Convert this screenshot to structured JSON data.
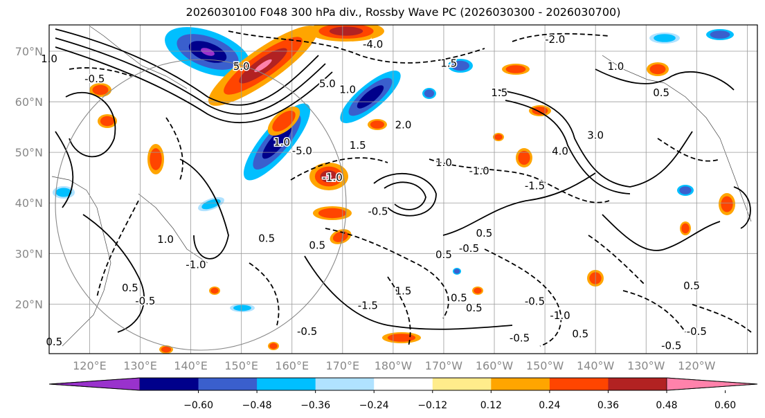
{
  "title": "2026030100 F048 300 hPa div., Rossby Wave PC (2026030300 - 2026030700)",
  "map": {
    "lat_labels": [
      "70°N",
      "60°N",
      "50°N",
      "40°N",
      "30°N",
      "20°N"
    ],
    "lon_labels": [
      "120°E",
      "130°E",
      "140°E",
      "150°E",
      "160°E",
      "170°E",
      "180°W",
      "170°W",
      "160°W",
      "150°W",
      "140°W",
      "130°W",
      "120°W"
    ],
    "contour_labels": [
      {
        "text": "-2.0",
        "lon": -148,
        "lat": 72.3
      },
      {
        "text": "-4.0",
        "lon": 176,
        "lat": 71.4
      },
      {
        "text": "1.0",
        "lon": 112,
        "lat": 68.5
      },
      {
        "text": "-0.5",
        "lon": 121,
        "lat": 64.5
      },
      {
        "text": "5.0",
        "lon": 150,
        "lat": 67
      },
      {
        "text": "5.0",
        "lon": 167,
        "lat": 63.6
      },
      {
        "text": "1.0",
        "lon": 171,
        "lat": 62.4
      },
      {
        "text": "1.5",
        "lon": -169,
        "lat": 67.6
      },
      {
        "text": "1.0",
        "lon": -136,
        "lat": 67
      },
      {
        "text": "1.5",
        "lon": -159,
        "lat": 61.8
      },
      {
        "text": "0.5",
        "lon": -127,
        "lat": 61.8
      },
      {
        "text": "3.0",
        "lon": -140,
        "lat": 53.4
      },
      {
        "text": "4.0",
        "lon": -147,
        "lat": 50.2
      },
      {
        "text": "-1.0",
        "lon": -163,
        "lat": 46.3
      },
      {
        "text": "-1.5",
        "lon": -152,
        "lat": 43.4
      },
      {
        "text": "-0.5",
        "lon": 177,
        "lat": 38.3
      },
      {
        "text": "0.5",
        "lon": 165,
        "lat": 31.6
      },
      {
        "text": "-1.0",
        "lon": 141,
        "lat": 27.8
      },
      {
        "text": "0.5",
        "lon": 155,
        "lat": 33
      },
      {
        "text": "-1.5",
        "lon": 175,
        "lat": 19.7
      },
      {
        "text": "1.5",
        "lon": -178,
        "lat": 22.6
      },
      {
        "text": "0.5",
        "lon": -167,
        "lat": 21.2
      },
      {
        "text": "-0.5",
        "lon": -165,
        "lat": 31
      },
      {
        "text": "0.5",
        "lon": -164,
        "lat": 19.2
      },
      {
        "text": "0.5",
        "lon": -162,
        "lat": 34
      },
      {
        "text": "-0.5",
        "lon": -152,
        "lat": 20.5
      },
      {
        "text": "-1.0",
        "lon": -147,
        "lat": 17.7
      },
      {
        "text": "-0.5",
        "lon": -155,
        "lat": 13.3
      },
      {
        "text": "0.5",
        "lon": -143,
        "lat": 14.1
      },
      {
        "text": "-0.5",
        "lon": -120,
        "lat": 14.6
      },
      {
        "text": "-0.5",
        "lon": -125,
        "lat": 11.8
      },
      {
        "text": "0.5",
        "lon": -121,
        "lat": 23.6
      },
      {
        "text": "-0.5",
        "lon": 131,
        "lat": 20.6
      },
      {
        "text": "-0.5",
        "lon": 163,
        "lat": 14.6
      },
      {
        "text": "0.5",
        "lon": 128,
        "lat": 23.2
      },
      {
        "text": "0.5",
        "lon": 113,
        "lat": 12.5
      },
      {
        "text": "-1.0",
        "lon": 168,
        "lat": 45
      },
      {
        "text": "1.0",
        "lon": 158,
        "lat": 52
      },
      {
        "text": "-5.0",
        "lon": 162,
        "lat": 50.3
      },
      {
        "text": "1.5",
        "lon": 173,
        "lat": 51.4
      },
      {
        "text": "2.0",
        "lon": -178,
        "lat": 55.4
      },
      {
        "text": "1.0",
        "lon": -170,
        "lat": 48
      },
      {
        "text": "0.5",
        "lon": -170,
        "lat": 29.8
      },
      {
        "text": "1.0",
        "lon": 135,
        "lat": 32.8
      }
    ],
    "fill_colors": {
      "neg_extreme": "#9932cc",
      "neg_060": "#00008b",
      "neg_048": "#3a5fcd",
      "neg_036": "#00bfff",
      "neg_024": "#b0e2ff",
      "pos_012": "#ffec8b",
      "pos_024": "#ffa500",
      "pos_036": "#ff4500",
      "pos_048": "#b22222",
      "pos_extreme": "#ff82ab"
    }
  },
  "colorbar": {
    "tick_labels": [
      "−0.60",
      "−0.48",
      "−0.36",
      "−0.24",
      "−0.12",
      "0.12",
      "0.24",
      "0.36",
      "0.48",
      "0.60"
    ],
    "colors": [
      "#9932cc",
      "#00008b",
      "#3a5fcd",
      "#00bfff",
      "#b0e2ff",
      "#ffffff",
      "#ffec8b",
      "#ffa500",
      "#ff4500",
      "#b22222",
      "#ff82ab"
    ]
  }
}
